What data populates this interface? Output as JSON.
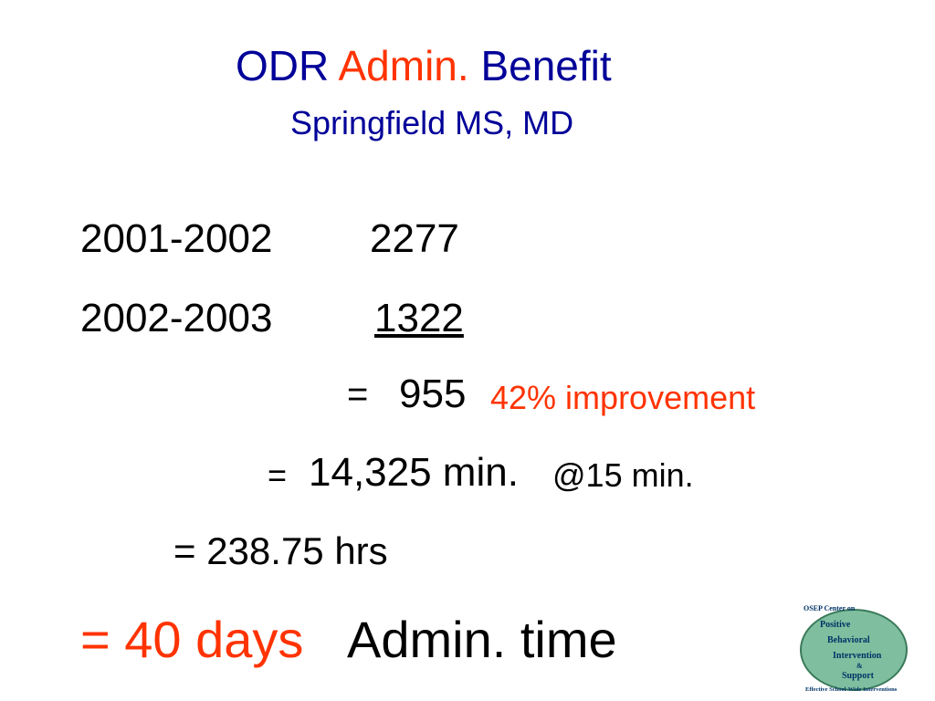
{
  "title": {
    "part1": "ODR",
    "part2": "Admin.",
    "part3": "Benefit",
    "subtitle": "Springfield MS, MD"
  },
  "rows": [
    [
      "2001-2002",
      "2277"
    ],
    [
      "2002-2003",
      "1322"
    ],
    [
      "=",
      "955",
      "42% improvement"
    ],
    [
      "=",
      "14,325 min.",
      "@15 min."
    ],
    [
      "= 238.75 hrs"
    ],
    [
      "= 40 days",
      "Admin. time"
    ]
  ],
  "logo": {
    "header": "OSEP Center on",
    "words": [
      "Positive",
      "Behavioral",
      "Intervention",
      "&",
      "Support"
    ],
    "footer": "Effective School-Wide Interventions"
  }
}
